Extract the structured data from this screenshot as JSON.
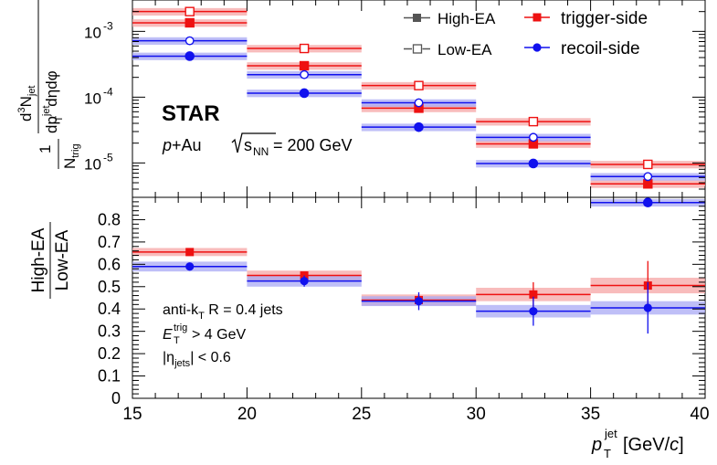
{
  "colors": {
    "trigger": "#ee1111",
    "trigger_band": "#f5a6a6",
    "recoil": "#1111ee",
    "recoil_band": "#a9a9f4",
    "legend_marker": "#555555"
  },
  "legend": {
    "high_ea": "High-EA",
    "low_ea": "Low-EA",
    "trigger": "trigger-side",
    "recoil": "recoil-side"
  },
  "labels": {
    "star": "STAR",
    "system_prefix": "p",
    "system_mid": "+Au ",
    "system_s": "s",
    "system_nn": "NN",
    "system_energy": " = 200 GeV",
    "jets_line": "anti-k",
    "jets_sub": "T",
    "jets_rest": " R = 0.4 jets",
    "et_E": "E",
    "et_T": "T",
    "et_trig": "trig",
    "et_rest": " > 4 GeV",
    "eta_open": "|η",
    "eta_sub": "jets",
    "eta_rest": "| < 0.6",
    "y_top_num_d3": "d",
    "y_top_num_3": "3",
    "y_top_num_N": "N",
    "y_top_num_jet": "jet",
    "y_top_den_1": "dp",
    "y_top_den_jet": "jet",
    "y_top_den_T": "T",
    "y_top_den_rest": "dηdφ",
    "y_top_pre_num": "1",
    "y_top_pre_N": "N",
    "y_top_pre_trig": "trig",
    "y_bot_num": "High-EA",
    "y_bot_den": "Low-EA",
    "x_label_p": "p",
    "x_label_jet": "jet",
    "x_label_T": "T",
    "x_label_rest": " [GeV/",
    "x_label_c": "c",
    "x_label_close": "]"
  },
  "chart_data": [
    {
      "type": "scatter",
      "panel": "top",
      "yscale": "log",
      "ylim": [
        3e-06,
        0.003
      ],
      "xlim": [
        15,
        40
      ],
      "bins": [
        [
          15,
          20
        ],
        [
          20,
          25
        ],
        [
          25,
          30
        ],
        [
          30,
          35
        ],
        [
          35,
          40
        ]
      ],
      "x": [
        17.5,
        22.5,
        27.5,
        32.5,
        37.5
      ],
      "ytick_labels": [
        "10",
        "10",
        "10"
      ],
      "ytick_exponents": [
        "-3",
        "-4",
        "-5"
      ],
      "ytick_values": [
        0.001,
        0.0001,
        1e-05
      ],
      "series": [
        {
          "name": "trigger-side",
          "ea": "High-EA",
          "values": [
            0.00135,
            0.0003,
            6.8e-05,
            1.95e-05,
            4.8e-06
          ],
          "band_rel": 0.13
        },
        {
          "name": "trigger-side",
          "ea": "Low-EA",
          "values": [
            0.002,
            0.00055,
            0.00015,
            4.25e-05,
            9.5e-06
          ],
          "band_rel": 0.13
        },
        {
          "name": "recoil-side",
          "ea": "High-EA",
          "values": [
            0.00042,
            0.000115,
            3.5e-05,
            9.8e-06,
            2.5e-06
          ],
          "band_rel": 0.13
        },
        {
          "name": "recoil-side",
          "ea": "Low-EA",
          "values": [
            0.00072,
            0.00022,
            8.2e-05,
            2.45e-05,
            6.2e-06
          ],
          "band_rel": 0.13
        }
      ]
    },
    {
      "type": "scatter",
      "panel": "bottom",
      "ylim": [
        0,
        0.9
      ],
      "xlim": [
        15,
        40
      ],
      "xticks": [
        15,
        20,
        25,
        30,
        35,
        40
      ],
      "xtick_labels": [
        "15",
        "20",
        "25",
        "30",
        "35",
        "40"
      ],
      "yticks": [
        0,
        0.1,
        0.2,
        0.3,
        0.4,
        0.5,
        0.6,
        0.7,
        0.8
      ],
      "ytick_labels": [
        "0",
        "0.1",
        "0.2",
        "0.3",
        "0.4",
        "0.5",
        "0.6",
        "0.7",
        "0.8"
      ],
      "bins": [
        [
          15,
          20
        ],
        [
          20,
          25
        ],
        [
          25,
          30
        ],
        [
          30,
          35
        ],
        [
          35,
          40
        ]
      ],
      "x": [
        17.5,
        22.5,
        27.5,
        32.5,
        37.5
      ],
      "series": [
        {
          "name": "trigger-side",
          "values": [
            0.655,
            0.55,
            0.44,
            0.465,
            0.505
          ],
          "stat_err": [
            0.01,
            0.012,
            0.025,
            0.055,
            0.11
          ],
          "sys_err": [
            0.018,
            0.022,
            0.025,
            0.03,
            0.035
          ]
        },
        {
          "name": "recoil-side",
          "values": [
            0.59,
            0.525,
            0.435,
            0.39,
            0.405
          ],
          "stat_err": [
            0.015,
            0.025,
            0.04,
            0.065,
            0.115
          ],
          "sys_err": [
            0.022,
            0.025,
            0.022,
            0.028,
            0.03
          ]
        }
      ]
    }
  ]
}
